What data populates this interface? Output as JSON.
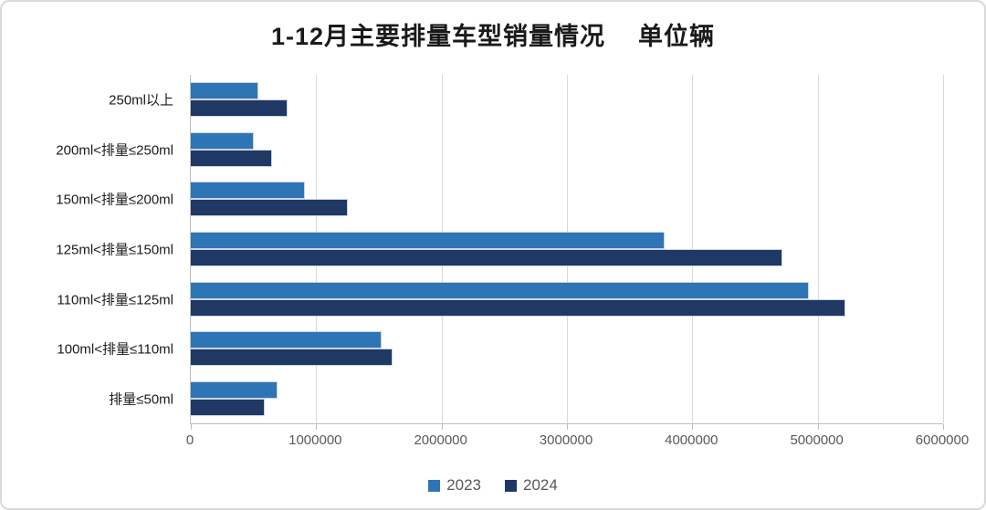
{
  "header": {
    "title": "1-12月主要排量车型销量情况",
    "unit_label": "单位辆"
  },
  "chart_data": {
    "type": "bar",
    "orientation": "horizontal",
    "title": "1-12月主要排量车型销量情况",
    "unit_label": "单位辆",
    "categories": [
      "250ml以上",
      "200ml<排量≤250ml",
      "150ml<排量≤200ml",
      "125ml<排量≤150ml",
      "110ml<排量≤125ml",
      "100ml<排量≤110ml",
      "排量≤50ml"
    ],
    "category_order": "top-to-bottom",
    "series": [
      {
        "name": "2023",
        "color": "#2E75B6",
        "values": [
          540000,
          500000,
          910000,
          3780000,
          4930000,
          1520000,
          690000
        ]
      },
      {
        "name": "2024",
        "color": "#1F3864",
        "values": [
          770000,
          650000,
          1250000,
          4720000,
          5220000,
          1610000,
          590000
        ]
      }
    ],
    "xlim": [
      0,
      6000000
    ],
    "x_tick_labels": [
      "0",
      "1000000",
      "2000000",
      "3000000",
      "4000000",
      "5000000",
      "6000000"
    ],
    "grid": "vertical",
    "legend_position": "bottom"
  },
  "colors": {
    "series_2023": "#2E75B6",
    "series_2024": "#1F3864",
    "gridline": "#D9D9D9",
    "axis_line": "#BFBFBF",
    "tick_text": "#595959",
    "category_text": "#1A1A1A",
    "background": "#FFFFFF"
  }
}
